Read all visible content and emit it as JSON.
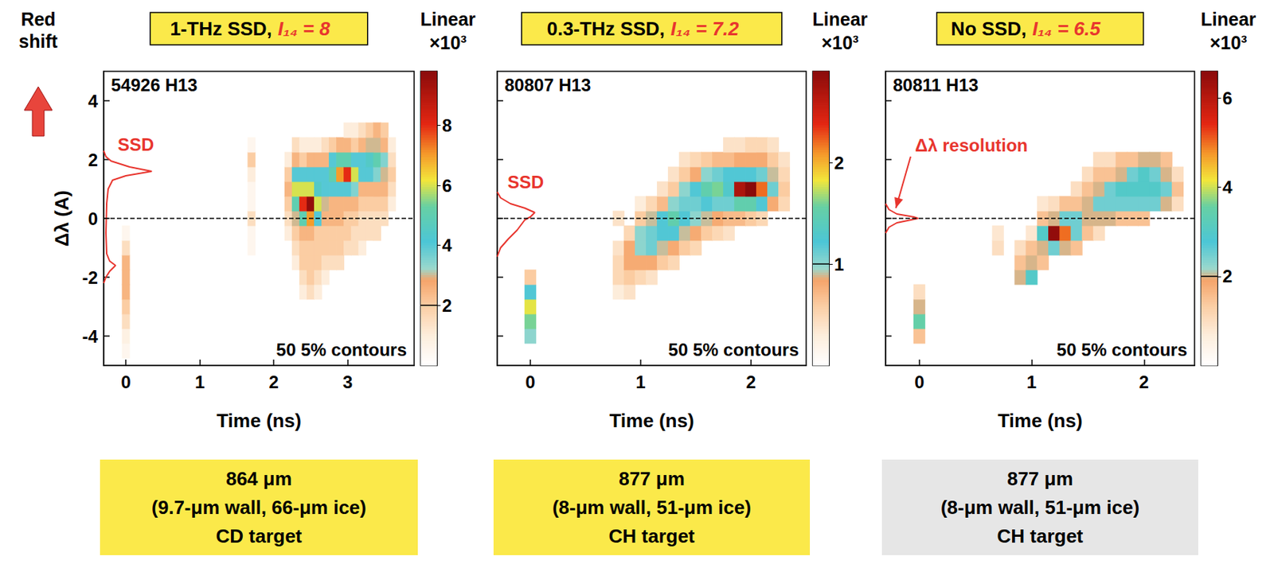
{
  "chart_data": [
    {
      "type": "heatmap",
      "title": "1-THz SSD, I₁₄ = 8",
      "shot": "54926 H13",
      "side_label": "Red shift",
      "x_label": "Time (ns)",
      "y_label": "Δλ (A)",
      "xlim": [
        -0.3,
        3.9
      ],
      "xticks": [
        0,
        1,
        2,
        3
      ],
      "ylim": [
        -5,
        5
      ],
      "yticks": [
        -4,
        -2,
        0,
        2,
        4
      ],
      "reference_line": 0,
      "cell_width": 0.1,
      "cell_height": 0.5,
      "columns": [
        {
          "t": 0.0,
          "dl_start": -4.5,
          "values": [
            0.5,
            0.8,
            1.5,
            2,
            2.5,
            2.5,
            2.5,
            1.5,
            0.5
          ]
        },
        {
          "t": 1.7,
          "dl_start": -1.0,
          "values": [
            0.5,
            0.5,
            1.5,
            0.5,
            0.5,
            1,
            2,
            0.5
          ]
        },
        {
          "t": 2.2,
          "dl_start": -0.5,
          "values": [
            1,
            1.5,
            2,
            2.5,
            2,
            1
          ]
        },
        {
          "t": 2.3,
          "dl_start": -1.5,
          "values": [
            1,
            1.5,
            2,
            3,
            5,
            6,
            4,
            2.5,
            1.5
          ]
        },
        {
          "t": 2.4,
          "dl_start": -2.5,
          "values": [
            1,
            1.5,
            2,
            2,
            2.5,
            5,
            8,
            6,
            4,
            2,
            1
          ]
        },
        {
          "t": 2.5,
          "dl_start": -2.5,
          "values": [
            1.5,
            2,
            2,
            2,
            2.5,
            7,
            9.6,
            6,
            4,
            2.5,
            1
          ]
        },
        {
          "t": 2.6,
          "dl_start": -2.5,
          "values": [
            1,
            1.5,
            2,
            2,
            2,
            4,
            6,
            4.5,
            4,
            2.5,
            1
          ]
        },
        {
          "t": 2.7,
          "dl_start": -2.0,
          "values": [
            1,
            1.5,
            2,
            2,
            2.5,
            3,
            4,
            4,
            2.5,
            1.5
          ]
        },
        {
          "t": 2.8,
          "dl_start": -1.5,
          "values": [
            1.5,
            2,
            2,
            2.5,
            2.5,
            4,
            5,
            4,
            2
          ]
        },
        {
          "t": 2.9,
          "dl_start": -1.5,
          "values": [
            1.5,
            2,
            2,
            2.5,
            2.5,
            4,
            7,
            5,
            2.5
          ]
        },
        {
          "t": 3.0,
          "dl_start": -1.0,
          "values": [
            1.5,
            2,
            2,
            2.5,
            4,
            8,
            5,
            2.5,
            1
          ]
        },
        {
          "t": 3.1,
          "dl_start": -1.0,
          "values": [
            1.5,
            1.5,
            2,
            2.5,
            3.5,
            6,
            4,
            2,
            1
          ]
        },
        {
          "t": 3.2,
          "dl_start": -1.0,
          "values": [
            1,
            1.5,
            1.5,
            2,
            2.5,
            4,
            4,
            2.5,
            1.5
          ]
        },
        {
          "t": 3.3,
          "dl_start": -0.5,
          "values": [
            1.5,
            1.5,
            2,
            2.5,
            4,
            4.5,
            3,
            2
          ]
        },
        {
          "t": 3.4,
          "dl_start": -0.5,
          "values": [
            1.5,
            1.5,
            2,
            2.5,
            3.5,
            5,
            3,
            2.5
          ]
        },
        {
          "t": 3.5,
          "dl_start": 0.0,
          "values": [
            1.5,
            2,
            2.5,
            3,
            3.5,
            2.5,
            2
          ]
        },
        {
          "t": 3.6,
          "dl_start": 0.5,
          "values": [
            1,
            1.5,
            2,
            1.5,
            1
          ]
        }
      ],
      "colorbar": {
        "title": "Linear ×10³",
        "range": [
          0,
          9.8
        ],
        "ticks": [
          2,
          4,
          6,
          8
        ],
        "contour_level": 2
      },
      "profile": {
        "label": "SSD",
        "color": "#e8352e",
        "t": [
          -0.3,
          -0.27,
          -0.22,
          -0.14,
          -0.22,
          -0.26,
          -0.27,
          -0.26,
          -0.24,
          -0.18,
          0.0,
          0.35,
          0.05,
          -0.2,
          -0.27,
          -0.3
        ],
        "dl": [
          -2.2,
          -2.0,
          -1.8,
          -1.6,
          -1.45,
          -1.2,
          -0.5,
          0.5,
          1.0,
          1.3,
          1.45,
          1.6,
          1.75,
          1.95,
          2.1,
          2.3
        ]
      },
      "contour_note": "50 5% contours",
      "caption": {
        "lines": [
          "864 μm",
          "(9.7-μm wall, 66-μm ice)",
          "CD target"
        ],
        "color": "#fbe94a"
      }
    },
    {
      "type": "heatmap",
      "title": "0.3-THz SSD, I₁₄ = 7.2",
      "shot": "80807 H13",
      "x_label": "Time (ns)",
      "xlim": [
        -0.3,
        2.5
      ],
      "xticks": [
        0,
        1,
        2
      ],
      "ylim": [
        -5,
        5
      ],
      "yticks": [
        -4,
        -2,
        0,
        2,
        4
      ],
      "tick_labels": "x",
      "reference_line": 0,
      "cell_width": 0.1,
      "cell_height": 0.5,
      "columns": [
        {
          "t": 0.0,
          "dl_start": -4.0,
          "values": [
            1,
            1.6,
            1.8,
            1.2,
            0.6
          ]
        },
        {
          "t": 0.8,
          "dl_start": -2.5,
          "values": [
            0.3,
            0.5,
            0.5,
            0.4,
            0,
            0.4
          ]
        },
        {
          "t": 0.9,
          "dl_start": -2.5,
          "values": [
            0.4,
            0.6,
            0.8,
            0.8,
            0.5
          ]
        },
        {
          "t": 1.0,
          "dl_start": -2.0,
          "values": [
            0.5,
            0.8,
            1,
            1,
            0.6,
            0.3
          ]
        },
        {
          "t": 1.1,
          "dl_start": -2.0,
          "values": [
            0.4,
            0.8,
            1.1,
            1.1,
            0.9,
            0.5
          ]
        },
        {
          "t": 1.2,
          "dl_start": -1.5,
          "values": [
            0.6,
            0.9,
            1.2,
            1.2,
            0.7,
            0.4
          ]
        },
        {
          "t": 1.3,
          "dl_start": -1.5,
          "values": [
            0.5,
            0.8,
            1.2,
            1.5,
            1,
            0.6,
            0.4
          ]
        },
        {
          "t": 1.4,
          "dl_start": -1.0,
          "values": [
            0.6,
            0.9,
            1.2,
            1.1,
            1,
            0.6,
            0.4
          ]
        },
        {
          "t": 1.5,
          "dl_start": -1.0,
          "values": [
            0.5,
            0.8,
            1,
            1.1,
            1.2,
            0.8,
            0.5
          ]
        },
        {
          "t": 1.6,
          "dl_start": -0.5,
          "values": [
            0.6,
            0.9,
            1.2,
            1.5,
            1,
            0.6
          ]
        },
        {
          "t": 1.7,
          "dl_start": -0.5,
          "values": [
            0.5,
            0.8,
            1.1,
            1.6,
            1.1,
            0.7
          ]
        },
        {
          "t": 1.8,
          "dl_start": -0.5,
          "values": [
            0.4,
            0.7,
            1.1,
            1.3,
            1.2,
            0.7,
            0.4
          ]
        },
        {
          "t": 1.9,
          "dl_start": 0.0,
          "values": [
            0.7,
            1.5,
            2.7,
            1.2,
            0.8,
            0.4
          ]
        },
        {
          "t": 2.0,
          "dl_start": 0.0,
          "values": [
            0.6,
            1.5,
            2.9,
            1.2,
            0.8,
            0.5
          ]
        },
        {
          "t": 2.1,
          "dl_start": 0.0,
          "values": [
            0.5,
            1.2,
            2.2,
            1.1,
            0.8,
            0.5
          ]
        },
        {
          "t": 2.2,
          "dl_start": 0.5,
          "values": [
            0.8,
            1.1,
            0.9,
            0.6,
            0.4
          ]
        },
        {
          "t": 2.3,
          "dl_start": 0.5,
          "values": [
            0.5,
            0.6,
            0.5,
            0.4
          ]
        }
      ],
      "colorbar": {
        "title": "Linear ×10³",
        "range": [
          0,
          2.9
        ],
        "ticks": [
          1,
          2
        ],
        "contour_level": 1
      },
      "profile": {
        "label": "SSD",
        "color": "#e8352e",
        "t": [
          -0.3,
          -0.27,
          -0.2,
          -0.12,
          -0.08,
          -0.05,
          0.0,
          0.04,
          -0.05,
          -0.18,
          -0.27,
          -0.3
        ],
        "dl": [
          -1.3,
          -1.0,
          -0.7,
          -0.4,
          -0.2,
          -0.05,
          0.05,
          0.2,
          0.35,
          0.5,
          0.7,
          0.9
        ]
      },
      "contour_note": "50 5% contours",
      "caption": {
        "lines": [
          "877 μm",
          "(8-μm wall, 51-μm ice)",
          "CH target"
        ],
        "color": "#fbe94a"
      }
    },
    {
      "type": "heatmap",
      "title": "No SSD, I₁₄ = 6.5",
      "shot": "80811 H13",
      "x_label": "Time (ns)",
      "xlim": [
        -0.3,
        2.45
      ],
      "xticks": [
        0,
        1,
        2
      ],
      "ylim": [
        -5,
        5
      ],
      "yticks": [
        -4,
        -2,
        0,
        2,
        4
      ],
      "tick_labels": "x",
      "reference_line": 0,
      "cell_width": 0.1,
      "cell_height": 0.5,
      "columns": [
        {
          "t": 0.0,
          "dl_start": -4.0,
          "values": [
            1.5,
            3.5,
            2,
            1
          ]
        },
        {
          "t": 0.7,
          "dl_start": -1.0,
          "values": [
            1,
            0.8
          ]
        },
        {
          "t": 0.9,
          "dl_start": -2.0,
          "values": [
            2,
            1.5,
            1
          ]
        },
        {
          "t": 1.0,
          "dl_start": -2.0,
          "values": [
            3,
            2,
            1.5,
            0.8
          ]
        },
        {
          "t": 1.1,
          "dl_start": -1.5,
          "values": [
            1.5,
            2,
            3,
            1.5,
            0.8
          ]
        },
        {
          "t": 1.2,
          "dl_start": -1.0,
          "values": [
            2.5,
            6.5,
            2,
            1
          ]
        },
        {
          "t": 1.3,
          "dl_start": -1.0,
          "values": [
            2,
            5,
            2.5,
            1.5
          ]
        },
        {
          "t": 1.4,
          "dl_start": -1.0,
          "values": [
            1.5,
            2.5,
            2.5,
            1.5,
            1
          ]
        },
        {
          "t": 1.5,
          "dl_start": -0.5,
          "values": [
            1.5,
            2,
            2,
            1.5,
            1
          ]
        },
        {
          "t": 1.6,
          "dl_start": -0.5,
          "values": [
            1,
            2,
            2.5,
            2,
            1.5,
            1
          ]
        },
        {
          "t": 1.7,
          "dl_start": 0.0,
          "values": [
            2,
            2.5,
            2.5,
            1.5,
            1
          ]
        },
        {
          "t": 1.8,
          "dl_start": 0.0,
          "values": [
            1.5,
            2.5,
            3,
            2,
            1.5
          ]
        },
        {
          "t": 1.9,
          "dl_start": 0.0,
          "values": [
            1.5,
            2.5,
            3,
            2.5,
            1.5
          ]
        },
        {
          "t": 2.0,
          "dl_start": 0.0,
          "values": [
            1.5,
            2.5,
            3,
            3,
            2
          ]
        },
        {
          "t": 2.1,
          "dl_start": 0.5,
          "values": [
            2.5,
            3,
            2.5,
            2
          ]
        },
        {
          "t": 2.2,
          "dl_start": 0.5,
          "values": [
            2,
            2.5,
            2,
            1.5
          ]
        },
        {
          "t": 2.3,
          "dl_start": 0.5,
          "values": [
            1,
            1.5,
            1
          ]
        }
      ],
      "colorbar": {
        "title": "Linear ×10³",
        "range": [
          0,
          6.6
        ],
        "ticks": [
          2,
          4,
          6
        ],
        "contour_level": 2
      },
      "profile": {
        "label": "Δλ resolution",
        "color": "#e8352e",
        "t": [
          -0.3,
          -0.27,
          -0.2,
          -0.05,
          -0.01,
          -0.05,
          -0.2,
          -0.27,
          -0.3
        ],
        "dl": [
          -0.5,
          -0.3,
          -0.15,
          -0.03,
          0.0,
          0.05,
          0.15,
          0.3,
          0.5
        ]
      },
      "contour_note": "50 5% contours",
      "caption": {
        "lines": [
          "877 μm",
          "(8-μm wall, 51-μm ice)",
          "CH target"
        ],
        "color": "#e6e6e6"
      }
    }
  ]
}
